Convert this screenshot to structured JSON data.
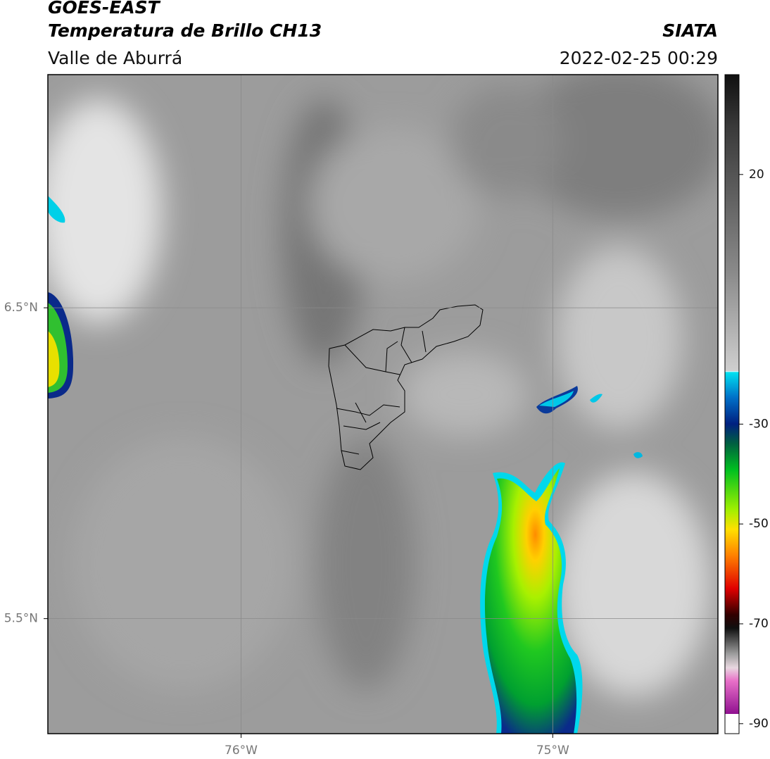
{
  "header": {
    "title": "GOES-EAST",
    "product": "Temperatura de Brillo CH13",
    "region": "Valle de Aburrá",
    "source": "SIATA",
    "datetime": "2022-02-25 00:29"
  },
  "map": {
    "xlim": [
      -76.62,
      -74.47
    ],
    "ylim": [
      5.13,
      7.25
    ],
    "xticks": [
      {
        "value": -76,
        "label": "76°W"
      },
      {
        "value": -75,
        "label": "75°W"
      }
    ],
    "yticks": [
      {
        "value": 6.5,
        "label": "6.5°N"
      },
      {
        "value": 5.5,
        "label": "5.5°N"
      }
    ],
    "grid": true
  },
  "colorbar": {
    "lim": [
      -92,
      40
    ],
    "ticks": [
      20,
      -30,
      -50,
      -70,
      -90
    ]
  }
}
